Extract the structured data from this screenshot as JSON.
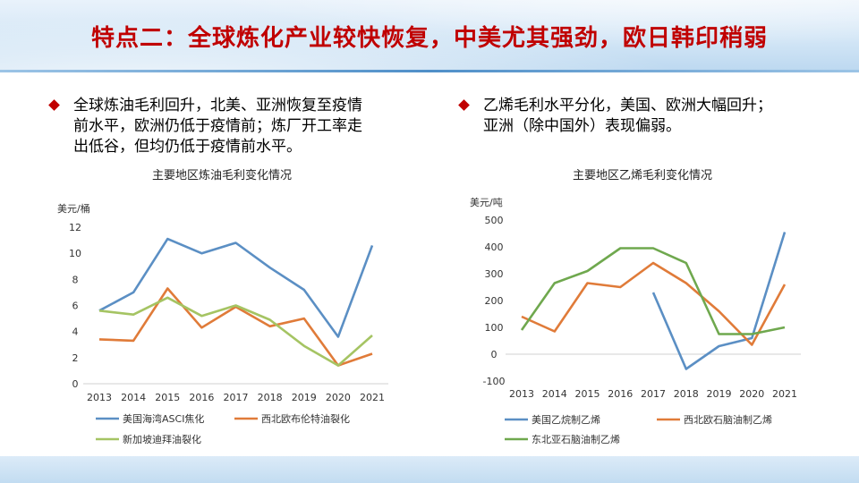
{
  "slide": {
    "title": "特点二：全球炼化产业较快恢复，中美尤其强劲，欧日韩印稍弱",
    "bullet_left": [
      "全球炼油毛利回升，北美、亚洲恢复至疫情",
      "前水平，欧洲仍低于疫情前；炼厂开工率走",
      "出低谷，但均仍低于疫情前水平。"
    ],
    "bullet_right": [
      "乙烯毛利水平分化，美国、欧洲大幅回升；",
      "亚洲（除中国外）表现偏弱。"
    ],
    "colors": {
      "title": "#c00000",
      "bullet": "#c00000"
    }
  },
  "chart_data": [
    {
      "type": "line",
      "title": "主要地区炼油毛利变化情况",
      "ylabel": "美元/桶",
      "xlabel": "",
      "ylim": [
        0,
        12
      ],
      "yticks": [
        0,
        2,
        4,
        6,
        8,
        10,
        12
      ],
      "categories": [
        "2013",
        "2014",
        "2015",
        "2016",
        "2017",
        "2018",
        "2019",
        "2020",
        "2021"
      ],
      "grid": false,
      "legend": "bottom",
      "series": [
        {
          "name": "美国海湾ASCI焦化",
          "color": "#5b8fc4",
          "values": [
            5.6,
            7.0,
            11.1,
            10.0,
            10.8,
            8.9,
            7.2,
            3.6,
            10.6
          ]
        },
        {
          "name": "西北欧布伦特油裂化",
          "color": "#e07b39",
          "values": [
            3.4,
            3.3,
            7.3,
            4.3,
            5.9,
            4.4,
            5.0,
            1.4,
            2.3
          ]
        },
        {
          "name": "新加坡迪拜油裂化",
          "color": "#a5c463",
          "values": [
            5.6,
            5.3,
            6.6,
            5.2,
            6.0,
            4.9,
            2.9,
            1.4,
            3.7
          ]
        }
      ]
    },
    {
      "type": "line",
      "title": "主要地区乙烯毛利变化情况",
      "ylabel": "美元/吨",
      "xlabel": "",
      "ylim": [
        -100,
        500
      ],
      "yticks": [
        -100,
        0,
        100,
        200,
        300,
        400,
        500
      ],
      "categories": [
        "2013",
        "2014",
        "2015",
        "2016",
        "2017",
        "2018",
        "2019",
        "2020",
        "2021"
      ],
      "grid": false,
      "legend": "bottom",
      "series": [
        {
          "name": "美国乙烷制乙烯",
          "color": "#5b8fc4",
          "values": [
            null,
            null,
            null,
            null,
            230,
            -55,
            30,
            60,
            455
          ]
        },
        {
          "name": "西北欧石脑油制乙烯",
          "color": "#e07b39",
          "values": [
            140,
            85,
            265,
            250,
            340,
            265,
            160,
            35,
            260
          ]
        },
        {
          "name": "东北亚石脑油制乙烯",
          "color": "#6fa84e",
          "values": [
            90,
            265,
            310,
            395,
            395,
            340,
            75,
            75,
            100
          ]
        }
      ]
    }
  ]
}
